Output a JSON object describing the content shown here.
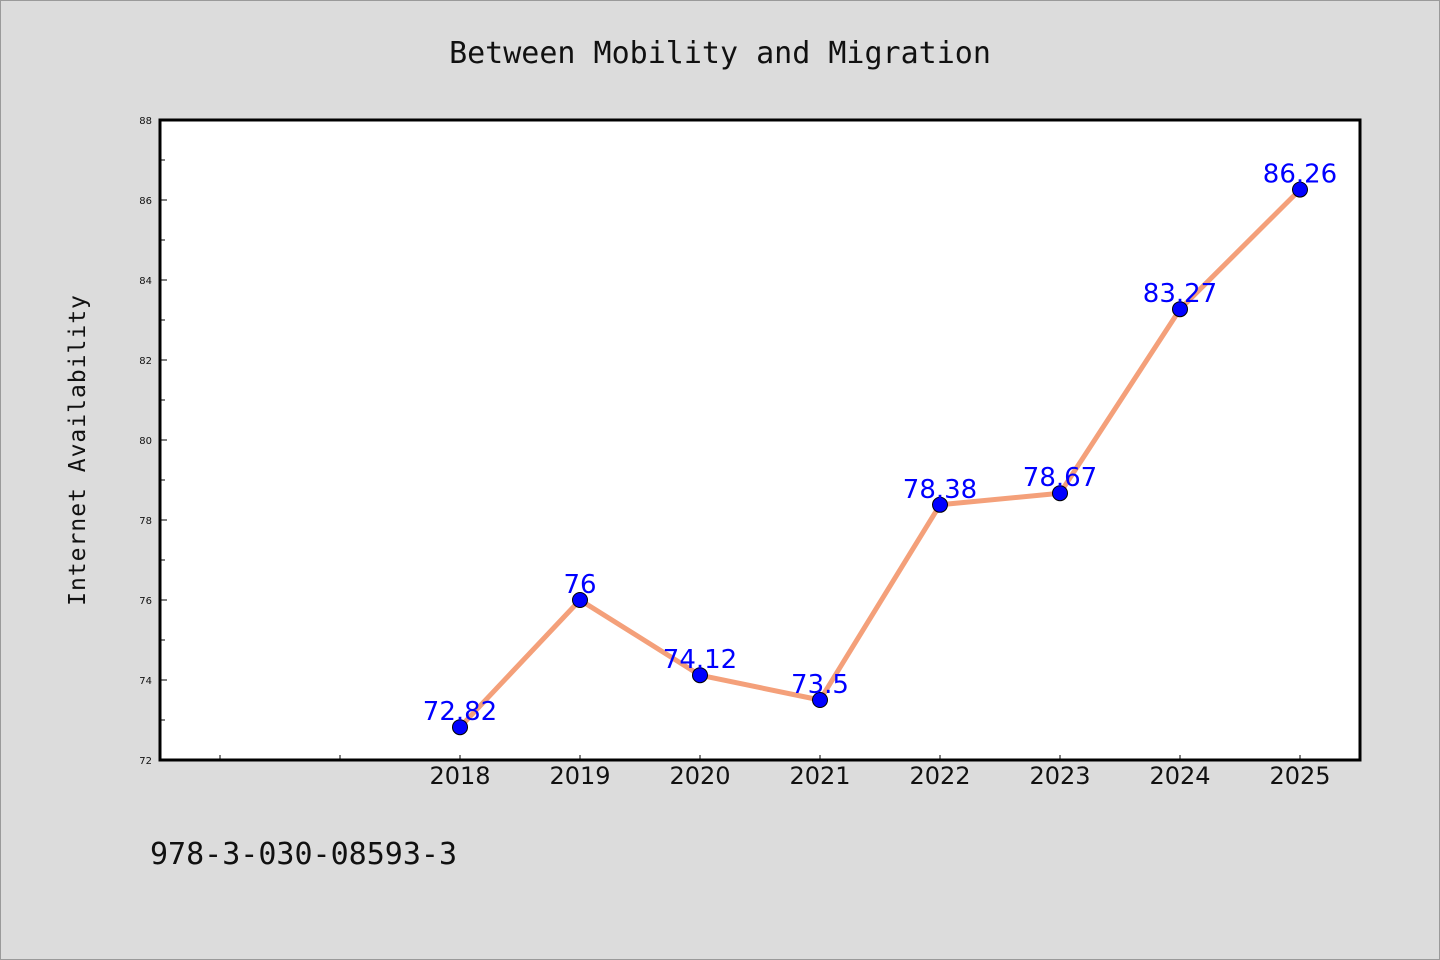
{
  "footer": {
    "code": "978-3-030-08593-3"
  },
  "colors": {
    "background": "#dcdcdc",
    "plot_background": "#ffffff",
    "line": "#f4a07a",
    "marker": "#0000ff",
    "label": "#0000ff"
  },
  "chart_data": {
    "type": "line",
    "title": "Between Mobility and Migration",
    "xlabel": "",
    "ylabel": "Internet Availability",
    "categories": [
      "2018",
      "2019",
      "2020",
      "2021",
      "2022",
      "2023",
      "2024",
      "2025"
    ],
    "series": [
      {
        "values": [
          72.82,
          76,
          74.12,
          73.5,
          78.38,
          78.67,
          83.27,
          86.26
        ]
      }
    ],
    "data_labels": [
      "72.82",
      "76",
      "74.12",
      "73.5",
      "78.38",
      "78.67",
      "83.27",
      "86.26"
    ],
    "ylim": [
      72,
      88
    ],
    "yticks": [
      "72",
      "74",
      "76",
      "78",
      "80",
      "82",
      "84",
      "86",
      "88"
    ],
    "grid": false,
    "legend": "none"
  }
}
